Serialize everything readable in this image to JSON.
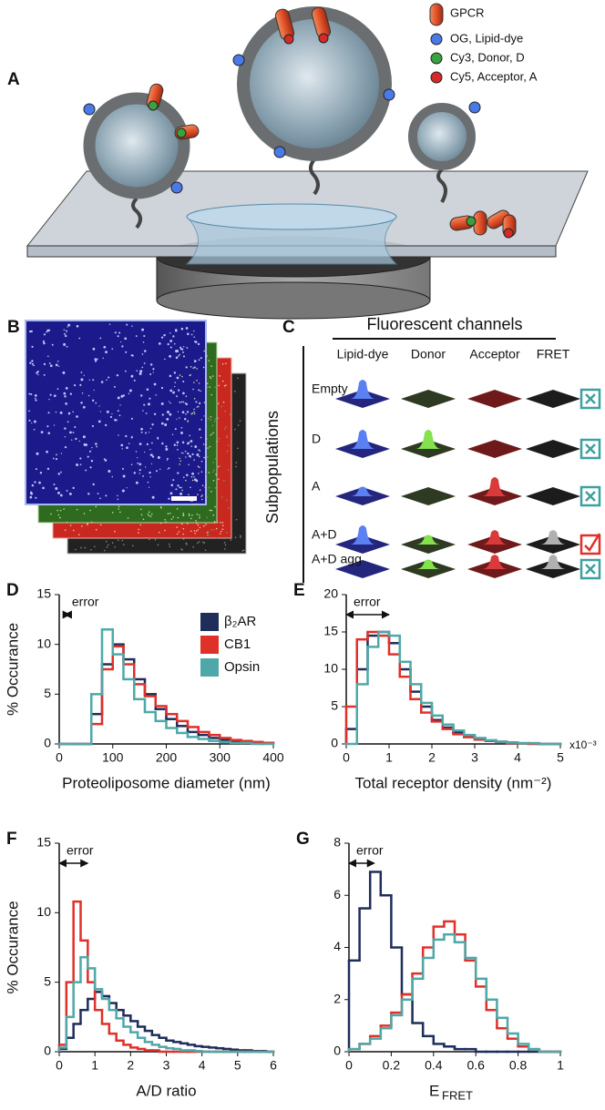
{
  "panel_a": {
    "label": "A",
    "legend": [
      "GPCR",
      "OG, Lipid-dye",
      "Cy3, Donor, D",
      "Cy5, Acceptor, A"
    ]
  },
  "panel_b": {
    "label": "B"
  },
  "panel_c": {
    "label": "C",
    "title": "Fluorescent channels",
    "columns": [
      "Lipid-dye",
      "Donor",
      "Acceptor",
      "FRET"
    ],
    "rows_title": "Subpopulations",
    "rows": [
      "Empty",
      "D",
      "A",
      "A+D",
      "A+D agg"
    ]
  },
  "chart_data": [
    {
      "type": "histogram",
      "panel_label": "D",
      "ylabel": "% Occurance",
      "xlabel": "Proteoliposome diameter (nm)",
      "annotation": "error",
      "error_bar": [
        10,
        20
      ],
      "bins": [
        0,
        20,
        40,
        60,
        80,
        100,
        120,
        140,
        160,
        180,
        200,
        220,
        240,
        260,
        280,
        300,
        320,
        340,
        360,
        380,
        400
      ],
      "xlim": [
        0,
        400
      ],
      "xticks": [
        0,
        100,
        200,
        300,
        400
      ],
      "ylim": [
        0,
        15
      ],
      "yticks": [
        0,
        5,
        10,
        15
      ],
      "legend": "upper right",
      "series": [
        {
          "name": "β₂AR",
          "color": "#1f2d5a",
          "values": [
            0,
            0,
            0,
            3,
            8,
            10,
            8.5,
            6.5,
            5,
            3.5,
            2.5,
            1.8,
            1.2,
            0.9,
            0.6,
            0.4,
            0.3,
            0.2,
            0.1,
            0.1
          ]
        },
        {
          "name": "CB1",
          "color": "#e0302a",
          "values": [
            0,
            0,
            0,
            2,
            7.5,
            9.8,
            8,
            6,
            4.8,
            3.8,
            3,
            2.3,
            1.7,
            1.2,
            0.9,
            0.6,
            0.4,
            0.3,
            0.2,
            0.1
          ]
        },
        {
          "name": "Opsin",
          "color": "#4fa8a8",
          "values": [
            0,
            0,
            0,
            5,
            11.5,
            9,
            6.5,
            4.5,
            3.2,
            2.3,
            1.6,
            1.1,
            0.7,
            0.5,
            0.3,
            0.2,
            0.1,
            0.1,
            0,
            0
          ]
        }
      ]
    },
    {
      "type": "histogram",
      "panel_label": "E",
      "xlabel": "Total receptor density (nm⁻²)",
      "x_multiplier": "x10⁻³",
      "annotation": "error",
      "error_bar": [
        0,
        1
      ],
      "bins": [
        0,
        0.25,
        0.5,
        0.75,
        1,
        1.25,
        1.5,
        1.75,
        2,
        2.25,
        2.5,
        2.75,
        3,
        3.25,
        3.5,
        3.75,
        4,
        4.25,
        4.5,
        4.75,
        5
      ],
      "xlim": [
        0,
        5
      ],
      "xticks": [
        0,
        1,
        2,
        3,
        4,
        5
      ],
      "ylim": [
        0,
        20
      ],
      "yticks": [
        0,
        5,
        10,
        15,
        20
      ],
      "series": [
        {
          "name": "β₂AR",
          "color": "#1f2d5a",
          "values": [
            2,
            10,
            14.5,
            15,
            13.5,
            10,
            7,
            5,
            3.2,
            2.2,
            1.5,
            1,
            0.6,
            0.4,
            0.3,
            0.2,
            0.1,
            0.1,
            0,
            0
          ]
        },
        {
          "name": "CB1",
          "color": "#e0302a",
          "values": [
            5,
            14,
            15,
            14.5,
            12,
            9,
            6,
            4.2,
            3,
            2,
            1.3,
            0.9,
            0.6,
            0.4,
            0.2,
            0.1,
            0.1,
            0,
            0,
            0
          ]
        },
        {
          "name": "Opsin",
          "color": "#4fa8a8",
          "values": [
            0,
            8,
            13,
            15,
            14.5,
            11,
            8,
            5.5,
            3.8,
            2.6,
            1.8,
            1.2,
            0.8,
            0.5,
            0.3,
            0.2,
            0.1,
            0.1,
            0,
            0
          ]
        }
      ]
    },
    {
      "type": "histogram",
      "panel_label": "F",
      "ylabel": "% Occurance",
      "xlabel": "A/D ratio",
      "annotation": "error",
      "error_bar": [
        0,
        0.8
      ],
      "bins": [
        0,
        0.2,
        0.4,
        0.6,
        0.8,
        1,
        1.2,
        1.4,
        1.6,
        1.8,
        2,
        2.2,
        2.4,
        2.6,
        2.8,
        3,
        3.2,
        3.4,
        3.6,
        3.8,
        4,
        4.2,
        4.4,
        4.6,
        4.8,
        5,
        5.2,
        5.4,
        5.6,
        5.8,
        6
      ],
      "xlim": [
        0,
        6
      ],
      "xticks": [
        0,
        1,
        2,
        3,
        4,
        5,
        6
      ],
      "ylim": [
        0,
        15
      ],
      "yticks": [
        0,
        5,
        10,
        15
      ],
      "series": [
        {
          "name": "β₂AR",
          "color": "#1f2d5a",
          "values": [
            0.2,
            1,
            2,
            3,
            3.8,
            4.3,
            4,
            3.5,
            3,
            2.6,
            2.2,
            1.8,
            1.5,
            1.2,
            1,
            0.8,
            0.7,
            0.6,
            0.5,
            0.4,
            0.35,
            0.3,
            0.25,
            0.2,
            0.15,
            0.1,
            0.1,
            0.05,
            0.05,
            0
          ]
        },
        {
          "name": "CB1",
          "color": "#e0302a",
          "values": [
            0.5,
            5,
            10.8,
            8,
            5,
            3,
            2,
            1.3,
            0.8,
            0.5,
            0.3,
            0.2,
            0.1,
            0.1,
            0,
            0,
            0,
            0,
            0,
            0,
            0,
            0,
            0,
            0,
            0,
            0,
            0,
            0,
            0,
            0
          ]
        },
        {
          "name": "Opsin",
          "color": "#4fa8a8",
          "values": [
            0.3,
            2.5,
            5,
            6.8,
            6,
            4.5,
            3.8,
            3,
            2.4,
            1.8,
            1.4,
            1,
            0.7,
            0.5,
            0.35,
            0.25,
            0.2,
            0.1,
            0.1,
            0.05,
            0,
            0,
            0,
            0,
            0,
            0,
            0,
            0,
            0,
            0
          ]
        }
      ]
    },
    {
      "type": "histogram",
      "panel_label": "G",
      "xlabel": "E",
      "xlabel_subscript": "FRET",
      "annotation": "error",
      "error_bar": [
        0,
        0.12
      ],
      "bins": [
        0,
        0.05,
        0.1,
        0.15,
        0.2,
        0.25,
        0.3,
        0.35,
        0.4,
        0.45,
        0.5,
        0.55,
        0.6,
        0.65,
        0.7,
        0.75,
        0.8,
        0.85,
        0.9,
        0.95,
        1
      ],
      "xlim": [
        0,
        1
      ],
      "xticks": [
        0,
        0.2,
        0.4,
        0.6,
        0.8,
        1
      ],
      "ylim": [
        0,
        8
      ],
      "yticks": [
        0,
        2,
        4,
        6,
        8
      ],
      "series": [
        {
          "name": "β₂AR",
          "color": "#1f2d5a",
          "values": [
            3.5,
            5.5,
            6.9,
            6,
            4,
            2.2,
            1.1,
            0.6,
            0.3,
            0.2,
            0.1,
            0.1,
            0,
            0,
            0,
            0,
            0,
            0,
            0,
            0
          ]
        },
        {
          "name": "CB1",
          "color": "#e0302a",
          "values": [
            0.1,
            0.3,
            0.6,
            1,
            1.5,
            2.2,
            3,
            4,
            4.8,
            5,
            4.5,
            3.5,
            2.5,
            1.6,
            0.9,
            0.5,
            0.2,
            0.1,
            0,
            0
          ]
        },
        {
          "name": "Opsin",
          "color": "#4fa8a8",
          "values": [
            0.1,
            0.3,
            0.5,
            0.9,
            1.4,
            2,
            2.8,
            3.6,
            4.3,
            4.5,
            4.2,
            3.6,
            2.8,
            2,
            1.3,
            0.7,
            0.3,
            0.1,
            0,
            0
          ]
        }
      ]
    }
  ]
}
